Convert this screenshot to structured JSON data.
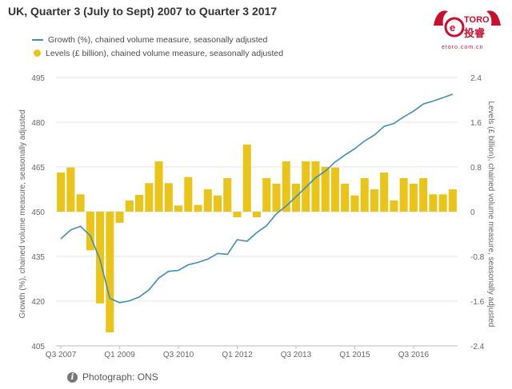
{
  "title": "UK, Quarter 3 (July to Sept) 2007 to Quarter 3 2017",
  "logo": {
    "brand": "etoro",
    "chinese": "投睿",
    "url": "etoro.com.cn"
  },
  "legend": {
    "growth": "Growth (%), chained volume measure, seasonally adjusted",
    "levels": "Levels (£ billion), chained volume measure, seasonally adjusted"
  },
  "footer": {
    "text": "Photograph: ONS"
  },
  "colors": {
    "line": "#3d8eb9",
    "bar": "#ebc419",
    "grid": "#e6e6e6"
  },
  "chart_data": {
    "type": "bar",
    "left_axis": {
      "label": "Growth (%), chained volume measure, seasonally adjusted",
      "range": [
        405,
        495
      ],
      "ticks": [
        "495",
        "480",
        "465",
        "450",
        "435",
        "420",
        "405"
      ]
    },
    "right_axis": {
      "label": "Levels (£ billion), chained volume measure, seasonally adjusted",
      "range": [
        -2.4,
        2.4
      ],
      "ticks": [
        "2.4",
        "1.6",
        "0.8",
        "0",
        "-0.8",
        "-1.6",
        "-2.4"
      ]
    },
    "x_tick_labels": [
      "Q3 2007",
      "Q1 2009",
      "Q3 2010",
      "Q1 2012",
      "Q3 2013",
      "Q1 2015",
      "Q3 2016"
    ],
    "x_tick_indices": [
      0,
      6,
      12,
      18,
      24,
      30,
      36
    ],
    "categories": [
      "Q3 2007",
      "Q4 2007",
      "Q1 2008",
      "Q2 2008",
      "Q3 2008",
      "Q4 2008",
      "Q1 2009",
      "Q2 2009",
      "Q3 2009",
      "Q4 2009",
      "Q1 2010",
      "Q2 2010",
      "Q3 2010",
      "Q4 2010",
      "Q1 2011",
      "Q2 2011",
      "Q3 2011",
      "Q4 2011",
      "Q1 2012",
      "Q2 2012",
      "Q3 2012",
      "Q4 2012",
      "Q1 2013",
      "Q2 2013",
      "Q3 2013",
      "Q4 2013",
      "Q1 2014",
      "Q2 2014",
      "Q3 2014",
      "Q4 2014",
      "Q1 2015",
      "Q2 2015",
      "Q3 2015",
      "Q4 2015",
      "Q1 2016",
      "Q2 2016",
      "Q3 2016",
      "Q4 2016",
      "Q1 2017",
      "Q2 2017",
      "Q3 2017"
    ],
    "series": [
      {
        "name": "Levels (£ billion), chained volume measure, seasonally adjusted",
        "axis": "right",
        "kind": "bar",
        "values": [
          0.7,
          0.79,
          0.31,
          -0.69,
          -1.64,
          -2.16,
          -0.2,
          0.2,
          0.3,
          0.51,
          0.9,
          0.51,
          0.11,
          0.62,
          0.12,
          0.4,
          0.29,
          0.6,
          -0.1,
          1.2,
          -0.1,
          0.6,
          0.5,
          0.9,
          0.5,
          0.9,
          0.9,
          0.8,
          0.79,
          0.5,
          0.29,
          0.6,
          0.4,
          0.7,
          0.2,
          0.6,
          0.5,
          0.6,
          0.31,
          0.31,
          0.4
        ]
      },
      {
        "name": "Growth (%), chained volume measure, seasonally adjusted",
        "axis": "left",
        "kind": "line",
        "values": [
          440.9,
          443.9,
          445.1,
          441.9,
          433.8,
          420.9,
          419.5,
          420.1,
          421.4,
          423.8,
          427.8,
          430.0,
          430.3,
          432.2,
          433.0,
          434.1,
          436.0,
          435.7,
          440.6,
          440.1,
          443.0,
          445.3,
          449.3,
          451.9,
          455.0,
          458.2,
          461.4,
          463.6,
          466.7,
          469.0,
          471.1,
          473.7,
          475.7,
          478.6,
          479.6,
          481.8,
          483.7,
          486.1,
          487.1,
          488.2,
          489.4
        ]
      }
    ],
    "grid": true,
    "legend_position": "top-left"
  }
}
